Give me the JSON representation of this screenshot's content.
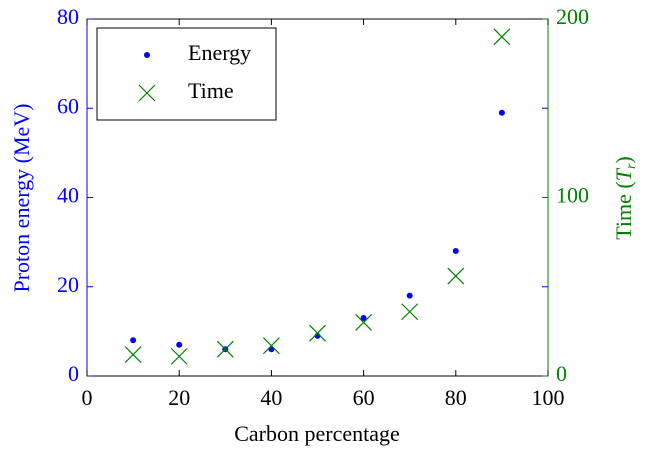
{
  "chart_data": {
    "type": "scatter",
    "x_label": "Carbon percentage",
    "y_label": "Proton energy (MeV)",
    "y2_label": [
      "Time (",
      "T",
      "r",
      ")"
    ],
    "x": [
      10,
      20,
      30,
      40,
      50,
      60,
      70,
      80,
      90
    ],
    "series": [
      {
        "name": "Energy",
        "color": "#0000ff",
        "marker": "dot",
        "values": [
          8,
          7,
          6,
          6,
          9,
          13,
          18,
          28,
          59
        ]
      },
      {
        "name": "Time",
        "color": "#008000",
        "marker": "x",
        "axis": "y2",
        "values": [
          12,
          11,
          15,
          17,
          24,
          30,
          36,
          56,
          190
        ]
      }
    ],
    "xlim": [
      0,
      100
    ],
    "xticks": [
      0,
      20,
      40,
      60,
      80,
      100
    ],
    "ylim": [
      0,
      80
    ],
    "yticks": [
      0,
      20,
      40,
      60,
      80
    ],
    "y2lim": [
      0,
      200
    ],
    "y2ticks": [
      0,
      100,
      200
    ],
    "legend": "upper left"
  }
}
